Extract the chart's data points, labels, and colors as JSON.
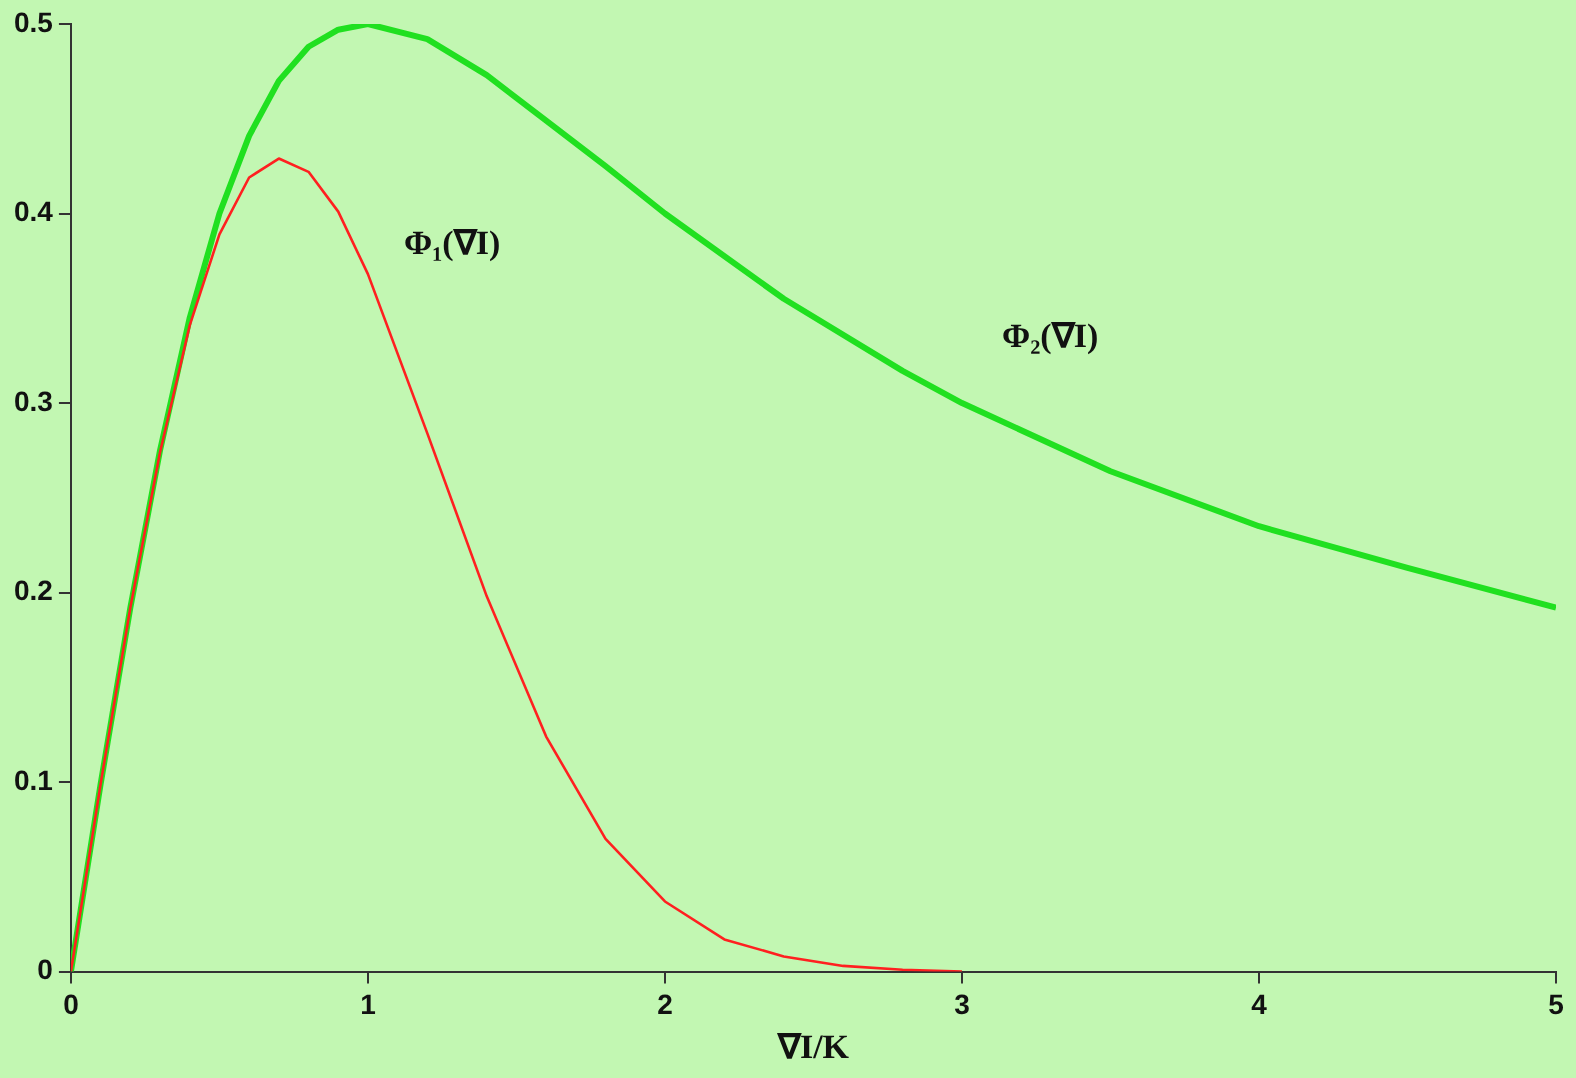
{
  "chart_data": {
    "type": "line",
    "xlabel": "∇I/K",
    "xlim": [
      0,
      5
    ],
    "xticks": [
      0,
      1,
      2,
      3,
      4,
      5
    ],
    "ylim": [
      0,
      0.5
    ],
    "yticks": [
      0,
      0.1,
      0.2,
      0.3,
      0.4,
      0.5
    ],
    "grid": false,
    "legend": false,
    "marker": "none",
    "line_style": "solid",
    "series": [
      {
        "name": "Φ₁(∇I)",
        "color": "#ff2020",
        "x": [
          0,
          0.1,
          0.2,
          0.3,
          0.4,
          0.5,
          0.6,
          0.7,
          0.8,
          0.9,
          1.0,
          1.2,
          1.4,
          1.6,
          1.8,
          2.0,
          2.2,
          2.4,
          2.6,
          2.8,
          3.0
        ],
        "values": [
          0,
          0.099,
          0.192,
          0.274,
          0.341,
          0.389,
          0.419,
          0.429,
          0.422,
          0.401,
          0.368,
          0.284,
          0.198,
          0.124,
          0.07,
          0.037,
          0.017,
          0.008,
          0.003,
          0.001,
          0
        ]
      },
      {
        "name": "Φ₂(∇I)",
        "color": "#20e020",
        "x": [
          0,
          0.1,
          0.2,
          0.3,
          0.4,
          0.5,
          0.6,
          0.7,
          0.8,
          0.9,
          1.0,
          1.2,
          1.4,
          1.6,
          1.8,
          2.0,
          2.4,
          2.8,
          3.0,
          3.5,
          4.0,
          4.5,
          5.0
        ],
        "values": [
          0,
          0.099,
          0.192,
          0.275,
          0.345,
          0.4,
          0.441,
          0.47,
          0.488,
          0.497,
          0.5,
          0.492,
          0.473,
          0.449,
          0.425,
          0.4,
          0.355,
          0.317,
          0.3,
          0.264,
          0.235,
          0.213,
          0.192
        ]
      }
    ]
  }
}
